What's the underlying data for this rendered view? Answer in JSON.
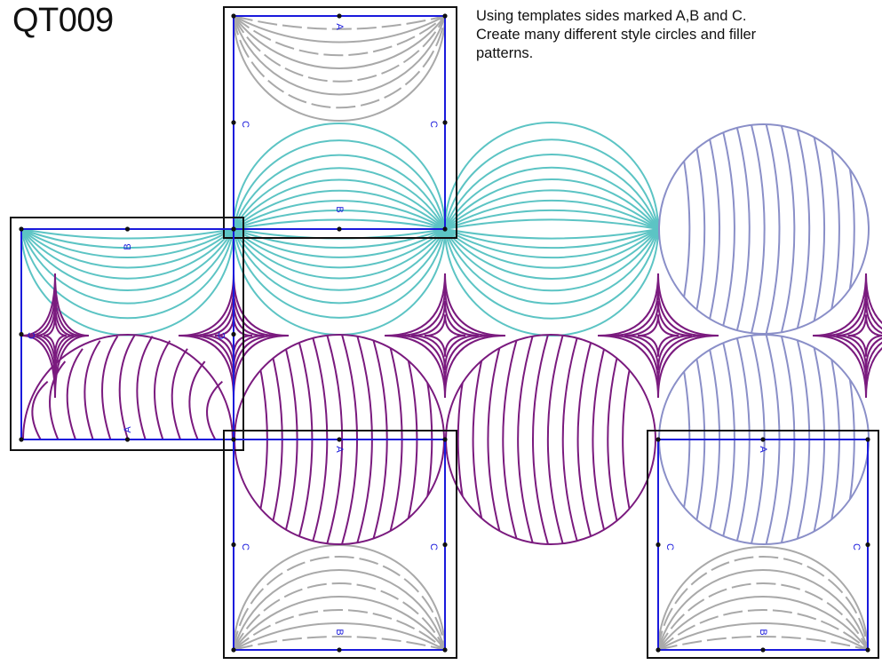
{
  "title": "QT009",
  "instructions": [
    "Using templates sides marked A,B and C.",
    "Create many different style circles and filler",
    "patterns."
  ],
  "side_labels": {
    "a": "A",
    "b": "B",
    "c": "C"
  },
  "colors": {
    "teal": "#5cc4c4",
    "purple": "#7a1a7e",
    "periwinkle": "#8a8fc8",
    "grey": "#a9a9a9",
    "blue": "#1a1adc",
    "black": "#111111"
  }
}
